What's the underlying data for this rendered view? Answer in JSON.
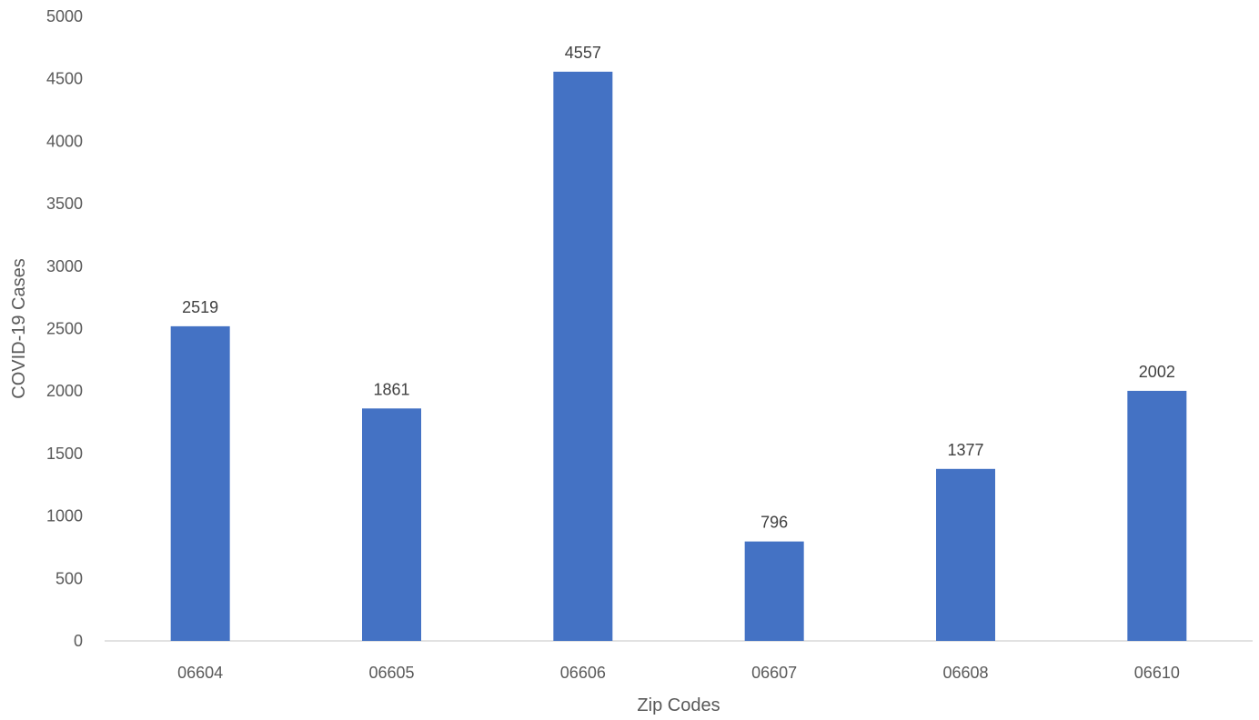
{
  "chart_data": {
    "type": "bar",
    "title": "",
    "xlabel": "Zip Codes",
    "ylabel": "COVID-19 Cases",
    "categories": [
      "06604",
      "06605",
      "06606",
      "06607",
      "06608",
      "06610"
    ],
    "values": [
      2519,
      1861,
      4557,
      796,
      1377,
      2002
    ],
    "data_labels": [
      "2519",
      "1861",
      "4557",
      "796",
      "1377",
      "2002"
    ],
    "ylim": [
      0,
      5000
    ],
    "yticks": [
      0,
      500,
      1000,
      1500,
      2000,
      2500,
      3000,
      3500,
      4000,
      4500,
      5000
    ],
    "ytick_labels": [
      "0",
      "500",
      "1000",
      "1500",
      "2000",
      "2500",
      "3000",
      "3500",
      "4000",
      "4500",
      "5000"
    ],
    "grid": false,
    "legend": "none",
    "colors": {
      "bar": "#4472c4",
      "axis": "#d9d9d9"
    }
  }
}
